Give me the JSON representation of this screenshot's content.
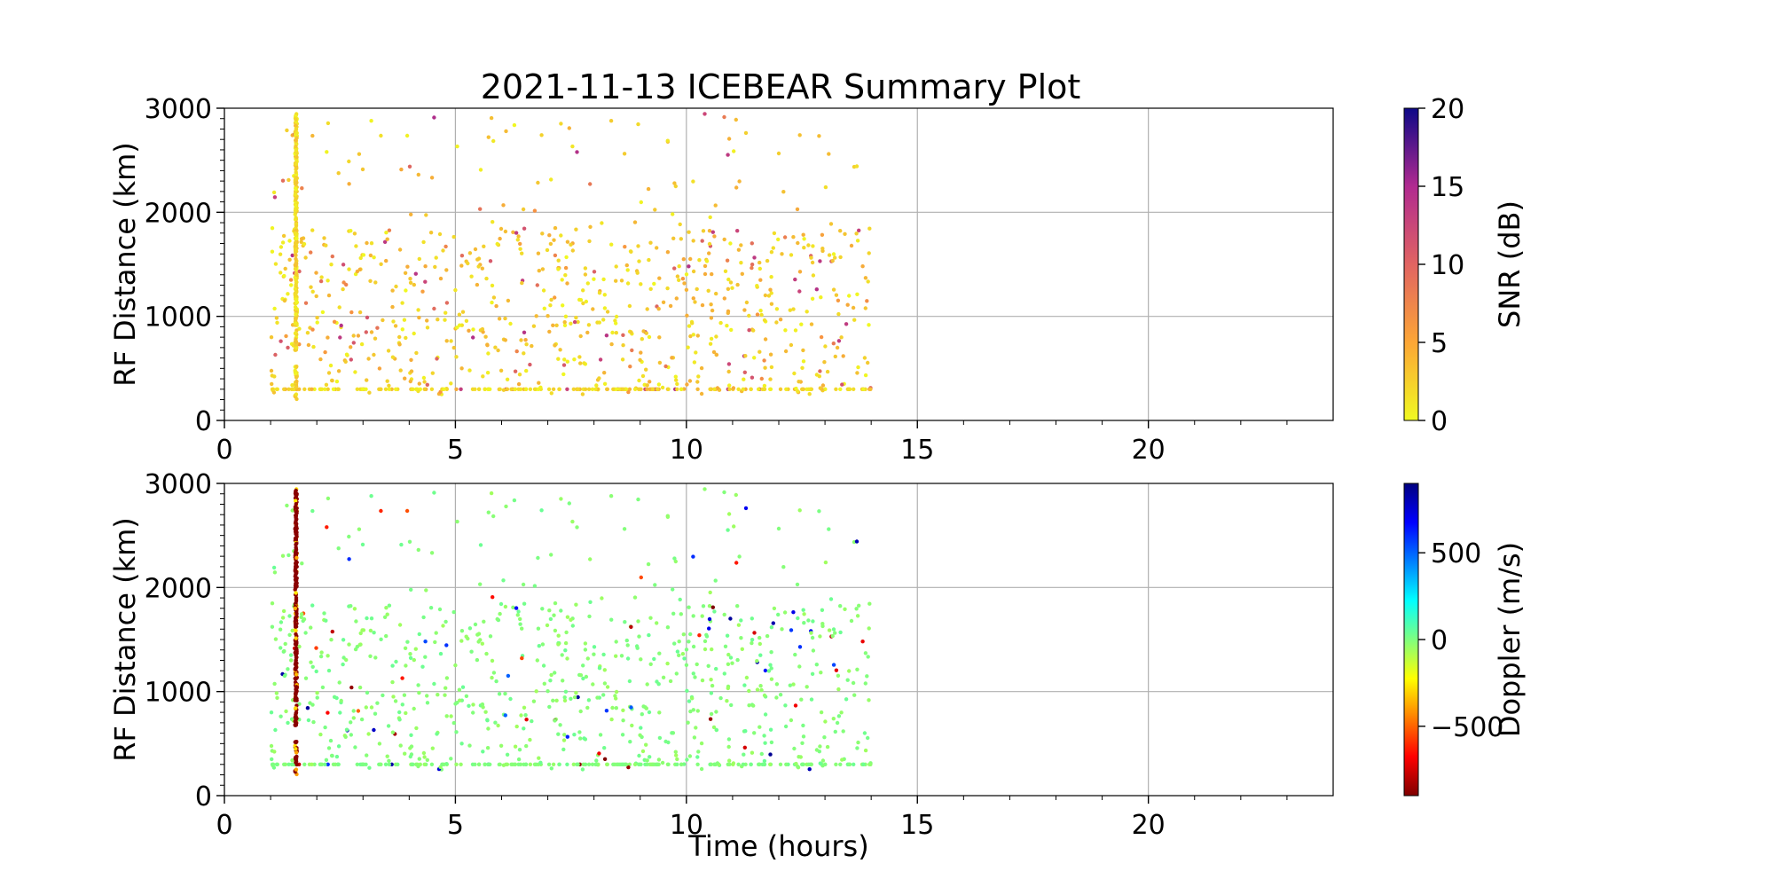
{
  "chart_data": [
    {
      "type": "scatter",
      "panel": "top",
      "title": "2021-11-13 ICEBEAR Summary Plot",
      "xlabel": "",
      "ylabel": "RF Distance (km)",
      "xlim": [
        0,
        24
      ],
      "ylim": [
        0,
        3000
      ],
      "xticks": [
        0,
        5,
        10,
        15,
        20
      ],
      "yticks": [
        0,
        1000,
        2000,
        3000
      ],
      "grid": true,
      "color_variable": "SNR (dB)",
      "colorbar": {
        "label": "SNR (dB)",
        "range": [
          0,
          20
        ],
        "ticks": [
          0,
          5,
          10,
          15,
          20
        ],
        "colormap": "plasma_r"
      },
      "summary": {
        "time_range_hours": [
          1.0,
          14.0
        ],
        "dense_vertical_band_hour": 1.55,
        "dense_band_range_km": [
          200,
          2950
        ],
        "typical_range_km": [
          250,
          1900
        ],
        "typical_snr_db": [
          0,
          5
        ]
      }
    },
    {
      "type": "scatter",
      "panel": "bottom",
      "title": "",
      "xlabel": "Time (hours)",
      "ylabel": "RF Distance (km)",
      "xlim": [
        0,
        24
      ],
      "ylim": [
        0,
        3000
      ],
      "xticks": [
        0,
        5,
        10,
        15,
        20
      ],
      "yticks": [
        0,
        1000,
        2000,
        3000
      ],
      "grid": true,
      "color_variable": "Doppler (m/s)",
      "colorbar": {
        "label": "Doppler (m/s)",
        "range": [
          -900,
          900
        ],
        "ticks": [
          -500,
          0,
          500
        ],
        "tick_labels": [
          "−500",
          "0",
          "500"
        ],
        "colormap": "jet_r"
      },
      "summary": {
        "time_range_hours": [
          1.0,
          14.0
        ],
        "dense_vertical_band_hour": 1.55,
        "dense_band_range_km": [
          200,
          2950
        ],
        "typical_doppler_ms": [
          -50,
          50
        ],
        "outlier_doppler_ms": [
          -900,
          900
        ]
      }
    }
  ]
}
